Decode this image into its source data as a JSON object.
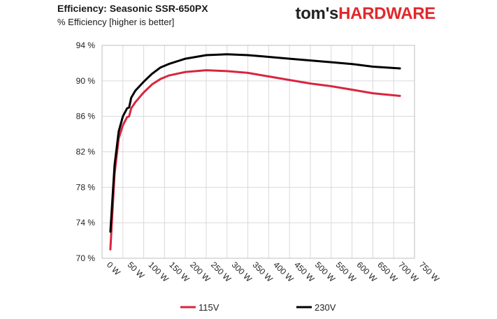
{
  "header": {
    "title": "Efficiency: Seasonic SSR-650PX",
    "subtitle": "% Efficiency [higher is better]"
  },
  "logo": {
    "part1": "tom's",
    "part2": "HARDWARE",
    "color_part2": "#e2272b"
  },
  "colors": {
    "series_115v": "#d7263d",
    "series_230v": "#000000",
    "grid": "#d9d9d9"
  },
  "chart_data": {
    "type": "line",
    "title": "Efficiency: Seasonic SSR-650PX",
    "subtitle": "% Efficiency [higher is better]",
    "xlabel": "",
    "ylabel": "",
    "xlim": [
      0,
      750
    ],
    "ylim": [
      70,
      94
    ],
    "x_ticks": [
      0,
      50,
      100,
      150,
      200,
      250,
      300,
      350,
      400,
      450,
      500,
      550,
      600,
      650,
      700,
      750
    ],
    "x_tick_labels": [
      "0 W",
      "50 W",
      "100 W",
      "150 W",
      "200 W",
      "250 W",
      "300 W",
      "350 W",
      "400 W",
      "450 W",
      "500 W",
      "550 W",
      "600 W",
      "650 W",
      "700 W",
      "750 W"
    ],
    "y_ticks": [
      70,
      74,
      78,
      82,
      86,
      90,
      94
    ],
    "y_tick_labels": [
      "70 %",
      "74 %",
      "78 %",
      "82 %",
      "86 %",
      "90 %",
      "94 %"
    ],
    "grid": true,
    "legend_position": "bottom",
    "series": [
      {
        "name": "115V",
        "x": [
          20,
          30,
          40,
          50,
          60,
          65,
          70,
          80,
          100,
          120,
          140,
          160,
          200,
          250,
          300,
          350,
          400,
          450,
          500,
          550,
          600,
          650,
          715
        ],
        "y": [
          71.0,
          79.5,
          83.5,
          85.0,
          85.9,
          86.0,
          86.9,
          87.6,
          88.7,
          89.6,
          90.2,
          90.6,
          91.0,
          91.2,
          91.1,
          90.9,
          90.5,
          90.1,
          89.7,
          89.4,
          89.0,
          88.6,
          88.3
        ]
      },
      {
        "name": "230V",
        "x": [
          20,
          30,
          40,
          50,
          60,
          65,
          70,
          80,
          100,
          120,
          140,
          160,
          200,
          250,
          300,
          350,
          400,
          450,
          500,
          550,
          600,
          650,
          715
        ],
        "y": [
          73.0,
          80.5,
          84.3,
          86.0,
          86.9,
          87.0,
          88.1,
          88.9,
          89.9,
          90.8,
          91.5,
          91.9,
          92.5,
          92.9,
          93.0,
          92.9,
          92.7,
          92.5,
          92.3,
          92.1,
          91.9,
          91.6,
          91.4
        ]
      }
    ]
  }
}
